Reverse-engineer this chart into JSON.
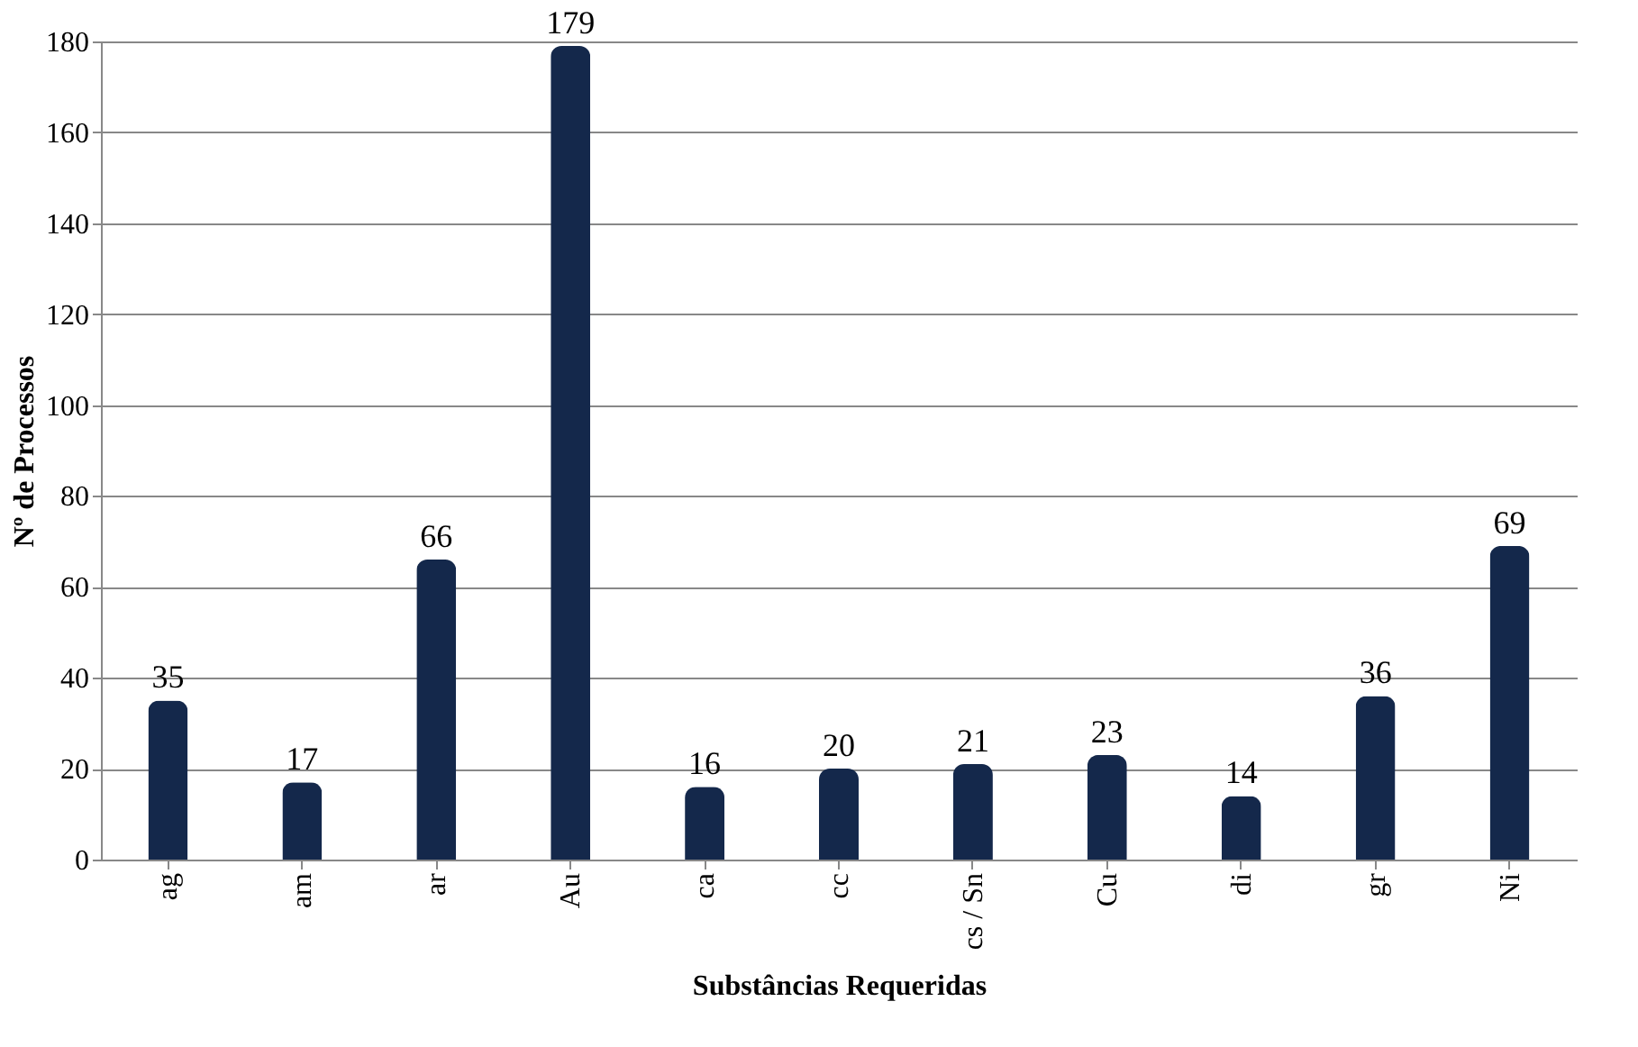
{
  "chart_data": {
    "type": "bar",
    "xlabel": "Substâncias Requeridas",
    "ylabel": "Nº de Processos",
    "categories": [
      "ag",
      "am",
      "ar",
      "Au",
      "ca",
      "cc",
      "cs / Sn",
      "Cu",
      "di",
      "gr",
      "Ni"
    ],
    "values": [
      35,
      17,
      66,
      179,
      16,
      20,
      21,
      23,
      14,
      36,
      69
    ],
    "color": "#14284b",
    "ylim": [
      0,
      180
    ],
    "yticks": [
      0,
      20,
      40,
      60,
      80,
      100,
      120,
      140,
      160,
      180
    ],
    "grid": "y",
    "data_labels": true
  }
}
